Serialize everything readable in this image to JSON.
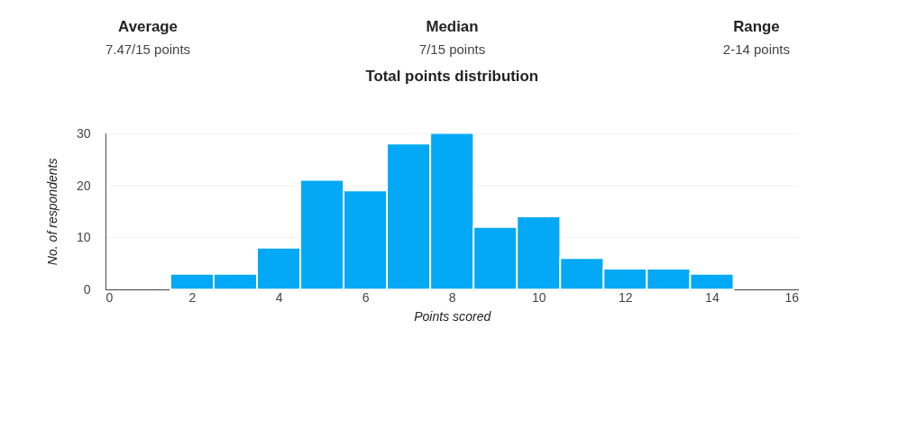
{
  "chart_data": {
    "type": "histogram",
    "title": "Total points distribution",
    "xlabel": "Points scored",
    "ylabel": "No. of respondents",
    "bins": [
      1.5,
      2.5,
      3.5,
      4.5,
      5.5,
      6.5,
      7.5,
      8.5,
      9.5,
      10.5,
      11.5,
      12.5,
      13.5,
      14.5
    ],
    "values": [
      3,
      3,
      8,
      21,
      19,
      28,
      30,
      12,
      14,
      6,
      4,
      4,
      3
    ],
    "color": "#03a9f4",
    "xlim": [
      0,
      16
    ],
    "xticks": [
      0,
      2,
      4,
      6,
      8,
      10,
      12,
      14,
      16
    ],
    "ylim": [
      0,
      30
    ],
    "yticks": [
      0,
      10,
      20,
      30
    ],
    "grid": "y",
    "legend": false,
    "annotations": [
      "Average",
      "7.47/15 points",
      "Median",
      "7/15 points",
      "Range",
      "2-14 points"
    ]
  }
}
